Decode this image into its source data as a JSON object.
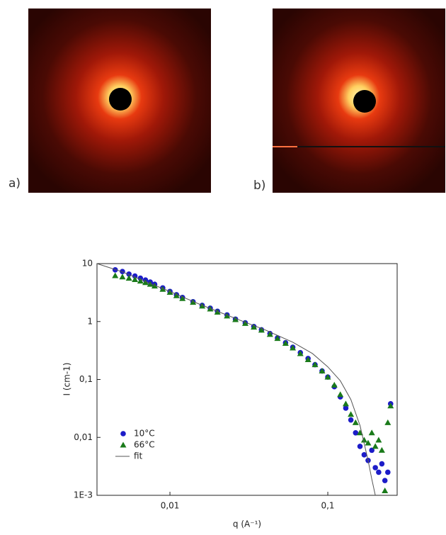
{
  "panels": [
    "a)",
    "b)"
  ],
  "chart_data": {
    "type": "scatter",
    "x_label": "q (A⁻¹)",
    "y_label": "I (cm-1)",
    "xscale": "log",
    "yscale": "log",
    "xlim": [
      0.00345,
      0.275
    ],
    "ylim": [
      0.001,
      10
    ],
    "xticks": [
      {
        "value": 0.01,
        "label": "0,01"
      },
      {
        "value": 0.1,
        "label": "0,1"
      }
    ],
    "yticks": [
      {
        "value": 0.001,
        "label": "1E-3"
      },
      {
        "value": 0.01,
        "label": "0,01"
      },
      {
        "value": 0.1,
        "label": "0,1"
      },
      1,
      10
    ],
    "legend": "lower left",
    "series": [
      {
        "name": "10°C",
        "color": "#1c1cc8",
        "marker": "circle",
        "x": [
          0.0045,
          0.005,
          0.0055,
          0.006,
          0.0065,
          0.007,
          0.0075,
          0.008,
          0.009,
          0.01,
          0.011,
          0.012,
          0.014,
          0.016,
          0.018,
          0.02,
          0.023,
          0.026,
          0.03,
          0.034,
          0.038,
          0.043,
          0.048,
          0.054,
          0.06,
          0.067,
          0.075,
          0.083,
          0.092,
          0.1,
          0.11,
          0.12,
          0.13,
          0.14,
          0.15,
          0.16,
          0.17,
          0.18,
          0.19,
          0.2,
          0.21,
          0.22,
          0.23,
          0.24,
          0.25
        ],
        "values": [
          7.8,
          7.3,
          6.6,
          6.1,
          5.6,
          5.2,
          4.8,
          4.4,
          3.8,
          3.3,
          2.9,
          2.6,
          2.2,
          1.9,
          1.7,
          1.5,
          1.3,
          1.1,
          0.95,
          0.82,
          0.72,
          0.62,
          0.52,
          0.43,
          0.36,
          0.29,
          0.23,
          0.18,
          0.14,
          0.11,
          0.075,
          0.05,
          0.032,
          0.02,
          0.012,
          0.007,
          0.005,
          0.004,
          0.006,
          0.003,
          0.0025,
          0.0035,
          0.0018,
          0.0025,
          0.038
        ]
      },
      {
        "name": "66°C",
        "color": "#1a7a1a",
        "marker": "triangle",
        "x": [
          0.0045,
          0.005,
          0.0055,
          0.006,
          0.0065,
          0.007,
          0.0075,
          0.008,
          0.009,
          0.01,
          0.011,
          0.012,
          0.014,
          0.016,
          0.018,
          0.02,
          0.023,
          0.026,
          0.03,
          0.034,
          0.038,
          0.043,
          0.048,
          0.054,
          0.06,
          0.067,
          0.075,
          0.083,
          0.092,
          0.1,
          0.11,
          0.12,
          0.13,
          0.14,
          0.15,
          0.16,
          0.17,
          0.18,
          0.19,
          0.2,
          0.21,
          0.22,
          0.23,
          0.24,
          0.25
        ],
        "values": [
          6.2,
          5.9,
          5.6,
          5.3,
          5.0,
          4.7,
          4.4,
          4.1,
          3.6,
          3.2,
          2.8,
          2.5,
          2.15,
          1.85,
          1.65,
          1.45,
          1.25,
          1.08,
          0.93,
          0.8,
          0.71,
          0.6,
          0.51,
          0.42,
          0.35,
          0.28,
          0.22,
          0.18,
          0.14,
          0.11,
          0.08,
          0.055,
          0.038,
          0.025,
          0.018,
          0.012,
          0.009,
          0.008,
          0.012,
          0.007,
          0.009,
          0.006,
          0.0012,
          0.018,
          0.035
        ]
      },
      {
        "name": "fit",
        "color": "#555555",
        "marker": "line",
        "x": [
          0.00345,
          0.005,
          0.007,
          0.01,
          0.015,
          0.02,
          0.03,
          0.04,
          0.06,
          0.08,
          0.1,
          0.12,
          0.14,
          0.16,
          0.18,
          0.19,
          0.2
        ],
        "values": [
          10,
          7.2,
          4.9,
          3.3,
          2.05,
          1.5,
          0.97,
          0.72,
          0.44,
          0.28,
          0.165,
          0.095,
          0.045,
          0.016,
          0.004,
          0.0019,
          0.001
        ]
      }
    ]
  }
}
